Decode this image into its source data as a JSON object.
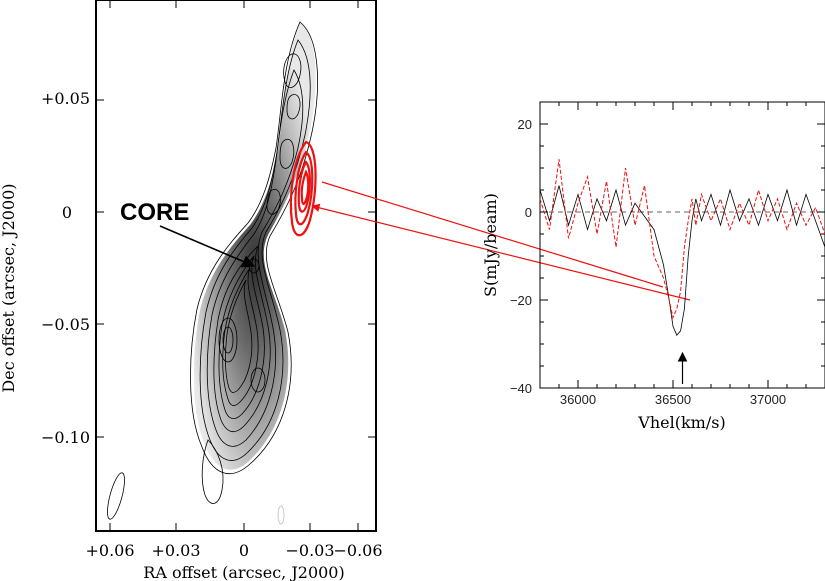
{
  "chart_data": [
    {
      "type": "contour",
      "xlabel": "RA offset (arcsec, J2000)",
      "ylabel": "Dec offset (arcsec, J2000)",
      "x_ticks": [
        "+0.06",
        "+0.03",
        "0",
        "−0.03",
        "−0.06"
      ],
      "y_ticks": [
        "+0.05",
        "0",
        "−0.05",
        "−0.10"
      ],
      "annotation": "CORE",
      "colors": {
        "contours": "#000000",
        "overlay": "#ee1111",
        "arrows": "#ee1111"
      }
    },
    {
      "type": "line",
      "xlabel": "Vhel(km/s)",
      "ylabel": "S(mJy/beam)",
      "xlim": [
        35800,
        37300
      ],
      "ylim": [
        -40,
        25
      ],
      "x_ticks": [
        "36000",
        "36500",
        "37000"
      ],
      "y_ticks": [
        "20",
        "0",
        "−20",
        "−40"
      ],
      "series": [
        {
          "style": "solid",
          "color": "#000000",
          "x": [
            35800,
            35850,
            35900,
            35950,
            36000,
            36050,
            36100,
            36150,
            36200,
            36250,
            36300,
            36350,
            36400,
            36450,
            36480,
            36500,
            36520,
            36540,
            36560,
            36580,
            36600,
            36620,
            36650,
            36700,
            36750,
            36800,
            36850,
            36900,
            36950,
            37000,
            37050,
            37100,
            37150,
            37200,
            37250,
            37300
          ],
          "values": [
            5,
            -2,
            6,
            -3,
            4,
            -4,
            3,
            -2,
            5,
            -3,
            2,
            -1,
            -4,
            -12,
            -20,
            -26,
            -28,
            -27,
            -22,
            -10,
            -2,
            3,
            -2,
            4,
            -3,
            5,
            -2,
            3,
            -3,
            4,
            -2,
            5,
            -3,
            4,
            -2,
            -8
          ]
        },
        {
          "style": "dashed",
          "color": "#ee1111",
          "x": [
            35800,
            35850,
            35900,
            35950,
            36000,
            36050,
            36100,
            36150,
            36200,
            36250,
            36300,
            36350,
            36400,
            36450,
            36480,
            36500,
            36520,
            36540,
            36560,
            36580,
            36600,
            36620,
            36650,
            36700,
            36750,
            36800,
            36850,
            36900,
            36950,
            37000,
            37050,
            37100,
            37150,
            37200,
            37250,
            37300
          ],
          "values": [
            3,
            -4,
            12,
            -6,
            2,
            8,
            -5,
            7,
            -8,
            10,
            -3,
            6,
            -10,
            -15,
            -20,
            -24,
            -22,
            -18,
            -8,
            -2,
            3,
            -3,
            4,
            -2,
            3,
            -4,
            2,
            -3,
            5,
            -2,
            3,
            -4,
            2,
            -3,
            1,
            -5
          ]
        }
      ],
      "marker_x": 36550
    }
  ]
}
